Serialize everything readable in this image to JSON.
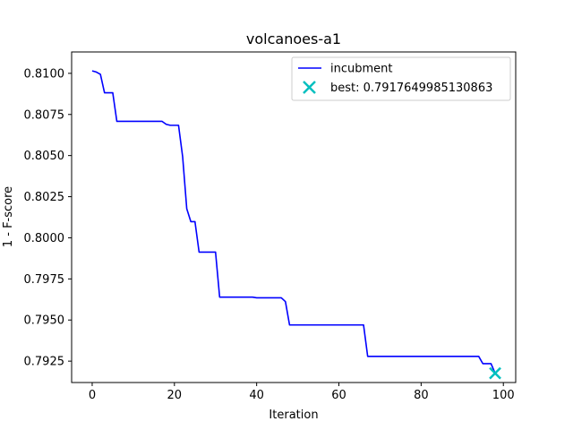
{
  "chart_data": {
    "type": "line",
    "title": "volcanoes-a1",
    "xlabel": "Iteration",
    "ylabel": "1 - F-score",
    "xlim": [
      -5,
      103
    ],
    "ylim": [
      0.7912,
      0.8113
    ],
    "xticks": [
      0,
      20,
      40,
      60,
      80,
      100
    ],
    "xtick_labels": [
      "0",
      "20",
      "40",
      "60",
      "80",
      "100"
    ],
    "yticks": [
      0.7925,
      0.795,
      0.7975,
      0.8,
      0.8025,
      0.805,
      0.8075,
      0.81
    ],
    "ytick_labels": [
      "0.7925",
      "0.7950",
      "0.7975",
      "0.8000",
      "0.8025",
      "0.8050",
      "0.8075",
      "0.8100"
    ],
    "grid": false,
    "legend_position": "top-right",
    "series": [
      {
        "name": "incubment",
        "color": "#0000ff",
        "x": [
          0,
          1,
          2,
          3,
          4,
          5,
          6,
          7,
          8,
          9,
          10,
          11,
          12,
          13,
          14,
          15,
          16,
          17,
          18,
          19,
          20,
          21,
          22,
          23,
          24,
          25,
          26,
          27,
          28,
          29,
          30,
          31,
          32,
          33,
          34,
          35,
          36,
          37,
          38,
          39,
          40,
          41,
          42,
          43,
          44,
          45,
          46,
          47,
          48,
          49,
          50,
          51,
          52,
          53,
          54,
          55,
          56,
          57,
          58,
          59,
          60,
          61,
          62,
          63,
          64,
          65,
          66,
          67,
          68,
          69,
          70,
          71,
          72,
          73,
          74,
          75,
          76,
          77,
          78,
          79,
          80,
          81,
          82,
          83,
          84,
          85,
          86,
          87,
          88,
          89,
          90,
          91,
          92,
          93,
          94,
          95,
          96,
          97,
          98
        ],
        "values": [
          0.81015,
          0.81008,
          0.80994,
          0.80882,
          0.80882,
          0.80882,
          0.80708,
          0.80708,
          0.80708,
          0.80708,
          0.80708,
          0.80708,
          0.80708,
          0.80708,
          0.80708,
          0.80708,
          0.80708,
          0.80708,
          0.8069,
          0.80684,
          0.80684,
          0.80684,
          0.80493,
          0.80177,
          0.80098,
          0.80098,
          0.79913,
          0.79913,
          0.79913,
          0.79913,
          0.79913,
          0.79639,
          0.79639,
          0.79639,
          0.79639,
          0.79639,
          0.79639,
          0.79639,
          0.79639,
          0.79639,
          0.79635,
          0.79635,
          0.79635,
          0.79635,
          0.79635,
          0.79635,
          0.79635,
          0.79612,
          0.7947,
          0.7947,
          0.7947,
          0.7947,
          0.7947,
          0.7947,
          0.7947,
          0.7947,
          0.7947,
          0.7947,
          0.7947,
          0.7947,
          0.7947,
          0.7947,
          0.7947,
          0.7947,
          0.7947,
          0.7947,
          0.7947,
          0.79279,
          0.79279,
          0.79279,
          0.79279,
          0.79279,
          0.79279,
          0.79279,
          0.79279,
          0.79279,
          0.79279,
          0.79279,
          0.79279,
          0.79279,
          0.79279,
          0.79279,
          0.79279,
          0.79279,
          0.79279,
          0.79279,
          0.79279,
          0.79279,
          0.79279,
          0.79279,
          0.79279,
          0.79279,
          0.79279,
          0.79279,
          0.79279,
          0.79235,
          0.79235,
          0.79235,
          0.79176
        ]
      }
    ],
    "best_point": {
      "label": "best: 0.7917649985130863",
      "x": 98,
      "y": 0.7917649985130863,
      "color": "#00bfbf",
      "marker": "x"
    }
  }
}
